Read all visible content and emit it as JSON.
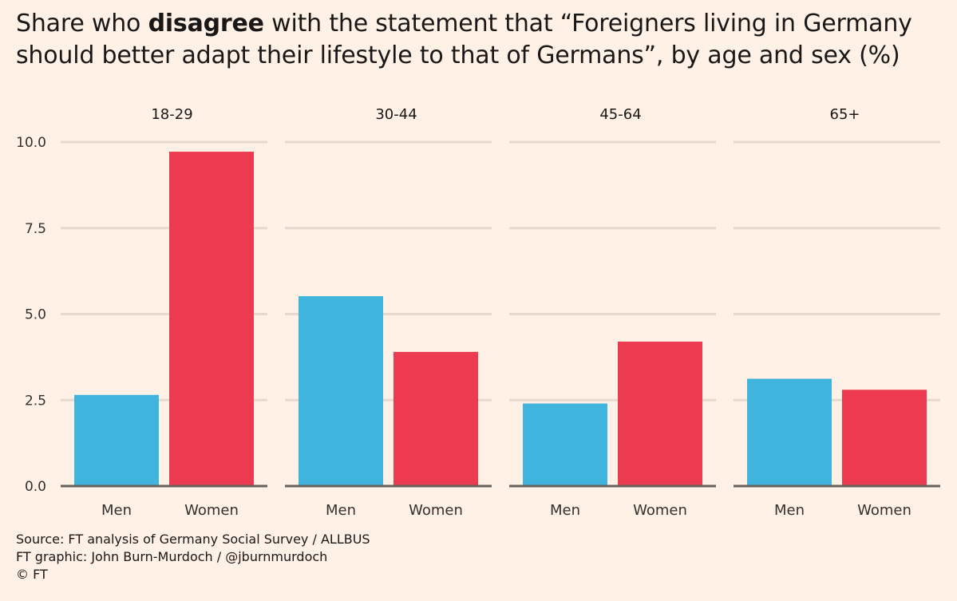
{
  "title": {
    "prefix": "Share who ",
    "bold": "disagree",
    "suffix": " with the statement that “Foreigners living in Germany should better adapt their lifestyle to that of Germans”, by age and sex (%)"
  },
  "colors": {
    "background": "#fff1e5",
    "men": "#40b4dc",
    "women": "#ec3b50",
    "grid": "#e6d9ce",
    "axis": "#66605c",
    "text": "#33302e"
  },
  "chart_data": {
    "type": "bar",
    "layout": "small-multiples",
    "series_names": [
      "Men",
      "Women"
    ],
    "ylim": [
      0,
      10
    ],
    "yticks": [
      0.0,
      2.5,
      5.0,
      7.5,
      10.0
    ],
    "ytick_labels": [
      "0.0",
      "2.5",
      "5.0",
      "7.5",
      "10.0"
    ],
    "panels": [
      {
        "label": "18-29",
        "categories": [
          "Men",
          "Women"
        ],
        "values": [
          2.65,
          9.72
        ]
      },
      {
        "label": "30-44",
        "categories": [
          "Men",
          "Women"
        ],
        "values": [
          5.52,
          3.9
        ]
      },
      {
        "label": "45-64",
        "categories": [
          "Men",
          "Women"
        ],
        "values": [
          2.4,
          4.2
        ]
      },
      {
        "label": "65+",
        "categories": [
          "Men",
          "Women"
        ],
        "values": [
          3.12,
          2.8
        ]
      }
    ]
  },
  "source": {
    "line1": "Source: FT analysis of Germany Social Survey / ALLBUS",
    "line2": "FT graphic: John Burn-Murdoch / @jburnmurdoch",
    "line3": "© FT"
  }
}
